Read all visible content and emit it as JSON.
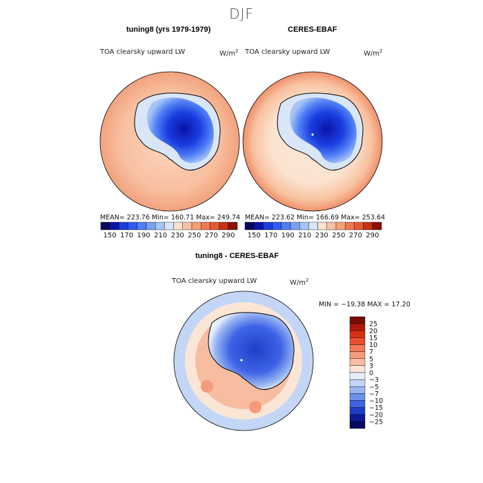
{
  "suptitle": "DJF",
  "panels": {
    "model": {
      "title": "tuning8 (yrs 1979-1979)",
      "variable": "TOA clearsky upward LW",
      "units": "W/m",
      "units_exp": "2",
      "stats": "MEAN= 223.76   Min= 160.71   Max= 249.74"
    },
    "obs": {
      "title": "CERES-EBAF",
      "variable": "TOA clearsky upward LW",
      "units": "W/m",
      "units_exp": "2",
      "stats": "MEAN= 223.62   Min= 166.69   Max= 253.64"
    },
    "diff": {
      "title": "tuning8 - CERES-EBAF",
      "variable": "TOA clearsky upward LW",
      "units": "W/m",
      "units_exp": "2",
      "stats": "MIN = −19.38  MAX =  17.20"
    }
  },
  "chart_data": [
    {
      "type": "heatmap",
      "title": "tuning8 (yrs 1979-1979)",
      "projection": "south polar stereographic",
      "mean": 223.76,
      "min": 160.71,
      "max": 249.74,
      "colorbar_levels": [
        150,
        160,
        170,
        180,
        190,
        200,
        210,
        220,
        230,
        240,
        250,
        260,
        270,
        280,
        290
      ],
      "colorbar_tick_labels": [
        "150",
        "170",
        "190",
        "210",
        "230",
        "250",
        "270",
        "290"
      ]
    },
    {
      "type": "heatmap",
      "title": "CERES-EBAF",
      "projection": "south polar stereographic",
      "mean": 223.62,
      "min": 166.69,
      "max": 253.64,
      "colorbar_levels": [
        150,
        160,
        170,
        180,
        190,
        200,
        210,
        220,
        230,
        240,
        250,
        260,
        270,
        280,
        290
      ],
      "colorbar_tick_labels": [
        "150",
        "170",
        "190",
        "210",
        "230",
        "250",
        "270",
        "290"
      ]
    },
    {
      "type": "heatmap",
      "title": "tuning8 - CERES-EBAF",
      "projection": "south polar stereographic",
      "min": -19.38,
      "max": 17.2,
      "colorbar_levels": [
        25,
        20,
        15,
        10,
        7,
        5,
        3,
        0,
        -3,
        -5,
        -7,
        -10,
        -15,
        -20,
        -25
      ],
      "colorbar_tick_labels": [
        "25",
        "20",
        "15",
        "10",
        "7",
        "5",
        "3",
        "0",
        "−3",
        "−5",
        "−7",
        "−10",
        "−15",
        "−20",
        "−25"
      ]
    }
  ],
  "colors": {
    "abs_scale": [
      "#08085e",
      "#0a14a8",
      "#1a3ee0",
      "#2f5cf0",
      "#4f7ff5",
      "#7aa0f5",
      "#a8c4f5",
      "#d8e6f8",
      "#fbe3d0",
      "#f8c2a0",
      "#f4a07a",
      "#ef7a52",
      "#e85a32",
      "#c83018",
      "#8c0e08"
    ],
    "diff_scale": [
      "#7a0c04",
      "#b01808",
      "#d83010",
      "#ea5030",
      "#f27a58",
      "#f69a7c",
      "#f8bca0",
      "#fbe6d6",
      "#e6eefa",
      "#c4d6f6",
      "#9ab6f2",
      "#6c92ee",
      "#3e64e6",
      "#1e3ec8",
      "#0c1a96",
      "#050a60"
    ]
  }
}
